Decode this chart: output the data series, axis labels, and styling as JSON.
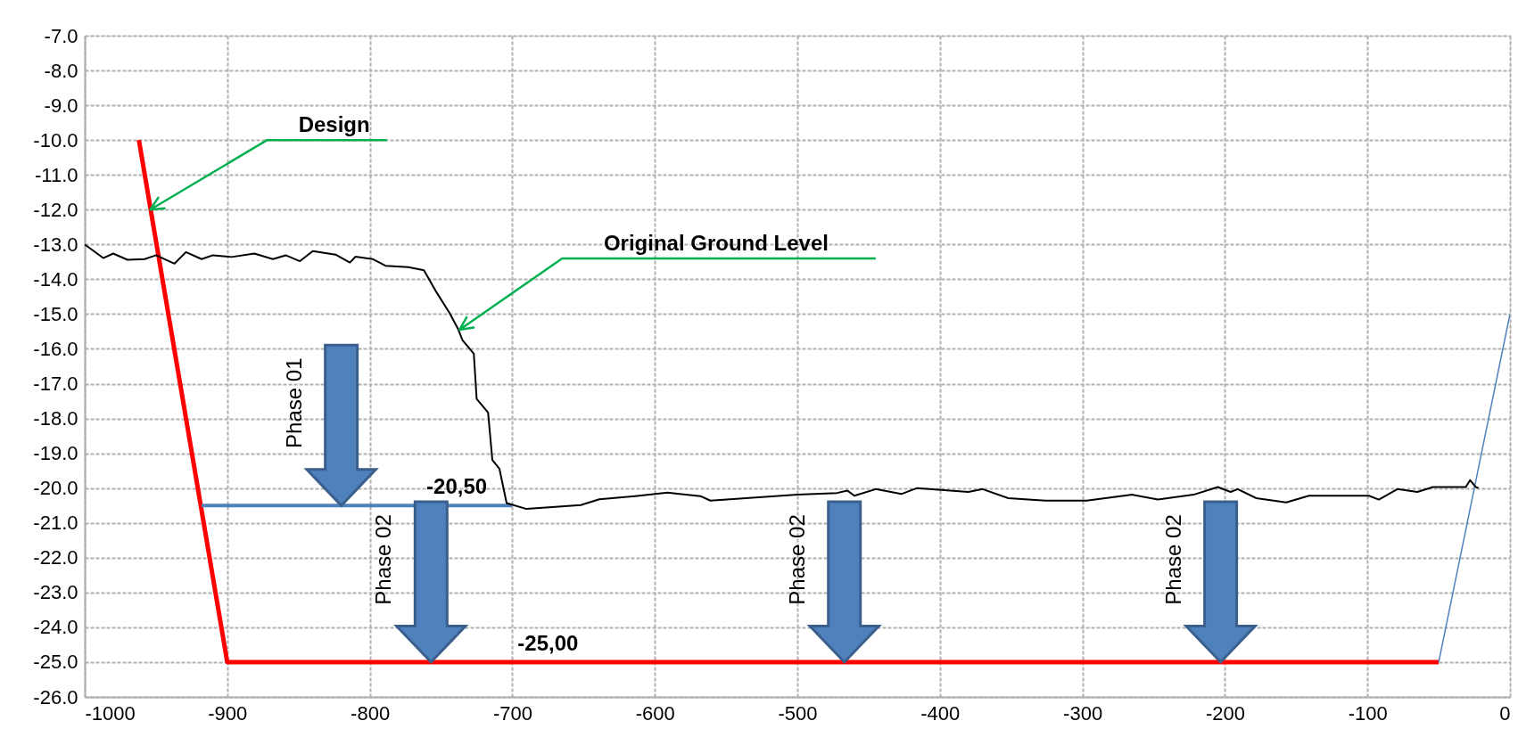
{
  "chart_data": {
    "type": "line",
    "xlim": [
      -1000,
      0
    ],
    "xticks": [
      -1000,
      -900,
      -800,
      -700,
      -600,
      -500,
      -400,
      -300,
      -200,
      -100,
      0
    ],
    "ylim": [
      -26,
      -7
    ],
    "yticks": [
      {
        "value": -7,
        "label": "-7.0"
      },
      {
        "value": -8,
        "label": "-8.0"
      },
      {
        "value": -9,
        "label": "-9.0"
      },
      {
        "value": -10,
        "label": "-10.0"
      },
      {
        "value": -11,
        "label": "-11.0"
      },
      {
        "value": -12,
        "label": "-12.0"
      },
      {
        "value": -13,
        "label": "-13.0"
      },
      {
        "value": -14,
        "label": "-14.0"
      },
      {
        "value": -15,
        "label": "-15.0"
      },
      {
        "value": -16,
        "label": "-16.0"
      },
      {
        "value": -17,
        "label": "-17.0"
      },
      {
        "value": -18,
        "label": "-18.0"
      },
      {
        "value": -19,
        "label": "-19.0"
      },
      {
        "value": -20,
        "label": "-20.0"
      },
      {
        "value": -21,
        "label": "-21.0"
      },
      {
        "value": -22,
        "label": "-22.0"
      },
      {
        "value": -23,
        "label": "-23.0"
      },
      {
        "value": -24,
        "label": "-24.0"
      },
      {
        "value": -25,
        "label": "-25.0"
      },
      {
        "value": -26,
        "label": "-26.0"
      }
    ],
    "grid": true,
    "marker": "none",
    "line_style": "solid",
    "series": [
      {
        "color": "#ff0000",
        "x": [
          -962,
          -900,
          -50
        ],
        "values": [
          -10.0,
          -25.0,
          -25.0
        ]
      },
      {
        "color": "#4f81bd",
        "x": [
          -918,
          -700
        ],
        "values": [
          -20.5,
          -20.5
        ]
      },
      {
        "color": "#4f81bd",
        "x": [
          -50,
          0
        ],
        "values": [
          -25.0,
          -15.0
        ]
      },
      {
        "color": "#000000",
        "x": [
          -1000,
          -987,
          -980,
          -970,
          -958,
          -950,
          -937,
          -929,
          -918,
          -910,
          -897,
          -881,
          -868,
          -859,
          -849,
          -840,
          -824,
          -814,
          -810,
          -798,
          -789,
          -773,
          -762,
          -754,
          -744,
          -738,
          -735,
          -727,
          -725,
          -717,
          -714,
          -709,
          -704,
          -690,
          -652,
          -639,
          -614,
          -591,
          -568,
          -561,
          -500,
          -472,
          -465,
          -460,
          -445,
          -427,
          -416,
          -380,
          -370,
          -352,
          -326,
          -297,
          -265,
          -247,
          -222,
          -205,
          -196,
          -191,
          -178,
          -157,
          -141,
          -99,
          -92,
          -79,
          -65,
          -54,
          -31,
          -28,
          -24,
          -22
        ],
        "values": [
          -13.0,
          -13.39,
          -13.26,
          -13.44,
          -13.42,
          -13.31,
          -13.55,
          -13.22,
          -13.42,
          -13.31,
          -13.36,
          -13.26,
          -13.42,
          -13.31,
          -13.48,
          -13.19,
          -13.29,
          -13.52,
          -13.35,
          -13.42,
          -13.61,
          -13.65,
          -13.74,
          -14.32,
          -14.97,
          -15.43,
          -15.75,
          -16.14,
          -17.44,
          -17.83,
          -19.19,
          -19.45,
          -20.43,
          -20.6,
          -20.49,
          -20.32,
          -20.23,
          -20.13,
          -20.23,
          -20.36,
          -20.19,
          -20.14,
          -20.07,
          -20.22,
          -20.03,
          -20.17,
          -20.0,
          -20.11,
          -20.03,
          -20.29,
          -20.36,
          -20.36,
          -20.19,
          -20.33,
          -20.19,
          -19.97,
          -20.11,
          -20.03,
          -20.29,
          -20.41,
          -20.22,
          -20.22,
          -20.33,
          -20.03,
          -20.11,
          -19.97,
          -19.97,
          -19.77,
          -19.97,
          -20.0
        ]
      }
    ],
    "annotations": [
      {
        "text": "Design",
        "x": -954,
        "y": -12.0
      },
      {
        "text": "Original Ground Level",
        "x": -737,
        "y": -15.45
      },
      "Phase 01",
      {
        "text": "-20,50",
        "x": -764,
        "y": -20.5
      },
      "Phase 02",
      {
        "text": "-25,00",
        "x": -700,
        "y": -25.0
      },
      "Phase 02",
      "Phase 02"
    ]
  }
}
